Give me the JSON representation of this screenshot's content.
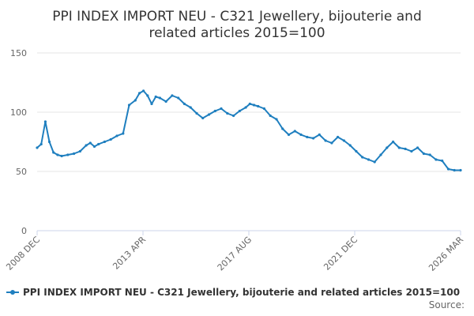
{
  "chart_data": {
    "type": "line",
    "title_lines": [
      "PPI INDEX IMPORT NEU - C321 Jewellery, bijouterie and",
      "related articles 2015=100"
    ],
    "xlabel": "",
    "ylabel": "",
    "ylim": [
      0,
      150
    ],
    "yticks": [
      "0",
      "50",
      "100",
      "150"
    ],
    "xticks": [
      "2008 DEC",
      "2013 APR",
      "2017 AUG",
      "2021 DEC",
      "2026 MAR"
    ],
    "grid": true,
    "legend_position": "bottom",
    "source": "Source:",
    "series": [
      {
        "name": "PPI INDEX IMPORT NEU - C321 Jewellery, bijouterie and related articles 2015=100",
        "color": "#1f7fbf",
        "x": [
          "2008-12",
          "2009-02",
          "2009-04",
          "2009-06",
          "2009-08",
          "2009-10",
          "2009-12",
          "2010-03",
          "2010-06",
          "2010-09",
          "2010-12",
          "2011-02",
          "2011-04",
          "2011-06",
          "2011-09",
          "2011-12",
          "2012-03",
          "2012-06",
          "2012-09",
          "2012-12",
          "2013-02",
          "2013-04",
          "2013-06",
          "2013-08",
          "2013-10",
          "2013-12",
          "2014-03",
          "2014-06",
          "2014-09",
          "2014-12",
          "2015-03",
          "2015-06",
          "2015-09",
          "2015-12",
          "2016-03",
          "2016-06",
          "2016-09",
          "2016-12",
          "2017-03",
          "2017-06",
          "2017-08",
          "2017-10",
          "2017-12",
          "2018-03",
          "2018-06",
          "2018-09",
          "2018-12",
          "2019-03",
          "2019-06",
          "2019-09",
          "2019-12",
          "2020-03",
          "2020-06",
          "2020-09",
          "2020-12",
          "2021-03",
          "2021-06",
          "2021-09",
          "2021-12",
          "2022-03",
          "2022-06",
          "2022-09",
          "2022-12",
          "2023-03",
          "2023-06",
          "2023-09",
          "2023-12",
          "2024-03",
          "2024-06",
          "2024-09",
          "2024-12",
          "2025-03",
          "2025-06",
          "2025-09",
          "2025-12",
          "2026-03"
        ],
        "values": [
          70,
          73,
          92,
          75,
          66,
          64,
          63,
          64,
          65,
          67,
          72,
          74,
          71,
          73,
          75,
          77,
          80,
          82,
          106,
          110,
          116,
          118,
          114,
          107,
          113,
          112,
          109,
          114,
          112,
          107,
          104,
          99,
          95,
          98,
          101,
          103,
          99,
          97,
          101,
          104,
          107,
          106,
          105,
          103,
          97,
          94,
          86,
          81,
          84,
          81,
          79,
          78,
          81,
          76,
          74,
          79,
          76,
          72,
          67,
          62,
          60,
          58,
          64,
          70,
          75,
          70,
          69,
          67,
          70,
          65,
          64,
          60,
          59,
          52,
          51,
          51
        ]
      }
    ]
  }
}
